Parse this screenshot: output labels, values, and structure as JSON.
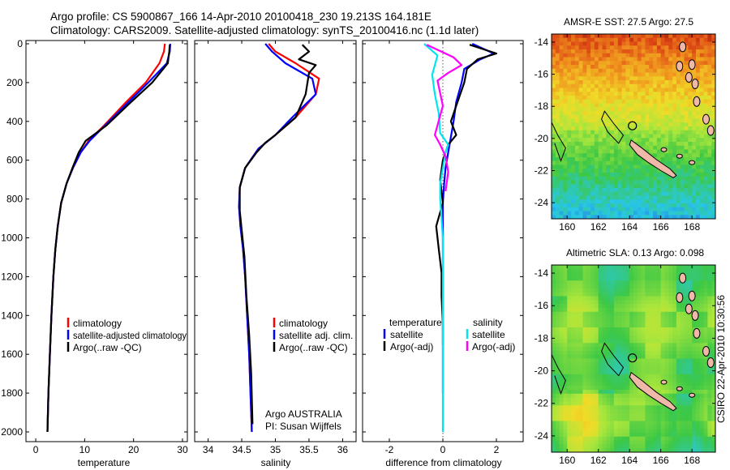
{
  "header": {
    "line1": "Argo profile: CS 5900867_166 14-Apr-2010 20100418_230 19.213S 164.181E",
    "line2": "Climatology: CARS2009. Satellite-adjusted climatology: synTS_20100416.nc (1.1d later)"
  },
  "credit": "Argo AUSTRALIA",
  "pi": "PI: Susan Wijffels",
  "timestamp": "CSIRO 22-Apr-2010 10:30:56",
  "colors": {
    "climatology": "#ff0000",
    "satellite": "#0000ff",
    "argo": "#000000",
    "sat_diff": "#00e5ee",
    "argo_diff": "#ff00ff"
  },
  "chart_data": [
    {
      "type": "line",
      "id": "temperature",
      "xlabel": "temperature",
      "xlim": [
        -2,
        31
      ],
      "xticks": [
        0,
        10,
        20,
        30
      ],
      "ylim": [
        2000,
        0
      ],
      "yticks": [
        0,
        200,
        400,
        600,
        800,
        1000,
        1200,
        1400,
        1600,
        1800,
        2000
      ],
      "legend": [
        "climatology",
        "satellite-adjusted climatology",
        "Argo(..raw -QC)"
      ],
      "series": [
        {
          "name": "climatology",
          "color": "#ff0000",
          "x": [
            26.4,
            26.2,
            25.3,
            22.5,
            18.5,
            14.0,
            10.8,
            9.2,
            7.6,
            6.3,
            5.2,
            4.5,
            4.0,
            3.6,
            3.2,
            2.9,
            2.6,
            2.4
          ],
          "y": [
            0,
            40,
            100,
            200,
            300,
            420,
            500,
            560,
            640,
            720,
            820,
            940,
            1060,
            1200,
            1400,
            1600,
            1800,
            2000
          ]
        },
        {
          "name": "satellite-adjusted climatology",
          "color": "#0000ff",
          "x": [
            27.5,
            27.4,
            26.8,
            23.0,
            19.0,
            14.2,
            11.0,
            9.2,
            7.6,
            6.3,
            5.2,
            4.5,
            4.0,
            3.6,
            3.2,
            2.9,
            2.6,
            2.4
          ],
          "y": [
            0,
            40,
            100,
            200,
            300,
            420,
            500,
            560,
            640,
            720,
            820,
            940,
            1060,
            1200,
            1400,
            1600,
            1800,
            2000
          ]
        },
        {
          "name": "Argo(..raw -QC)",
          "color": "#000000",
          "x": [
            27.4,
            27.3,
            27.0,
            23.8,
            19.5,
            14.5,
            10.2,
            8.8,
            7.5,
            6.3,
            5.2,
            4.5,
            4.0,
            3.6,
            3.2,
            2.9,
            2.6,
            2.4
          ],
          "y": [
            5,
            40,
            100,
            200,
            300,
            420,
            500,
            560,
            640,
            720,
            820,
            940,
            1060,
            1200,
            1400,
            1600,
            1800,
            2000
          ]
        }
      ]
    },
    {
      "type": "line",
      "id": "salinity",
      "xlabel": "salinity",
      "xlim": [
        33.8,
        36.2
      ],
      "xticks": [
        34,
        34.5,
        35,
        35.5,
        36
      ],
      "ylim": [
        2000,
        0
      ],
      "legend": [
        "climatology",
        "satellite adj. clim.",
        "Argo(..raw -QC)"
      ],
      "series": [
        {
          "name": "climatology",
          "color": "#ff0000",
          "x": [
            34.9,
            35.0,
            35.3,
            35.65,
            35.6,
            35.3,
            35.0,
            34.75,
            34.55,
            34.47,
            34.46,
            34.48,
            34.52,
            34.55,
            34.58,
            34.61,
            34.63,
            34.65
          ],
          "y": [
            0,
            40,
            100,
            180,
            260,
            380,
            470,
            540,
            640,
            740,
            840,
            940,
            1060,
            1200,
            1400,
            1600,
            1800,
            2000
          ]
        },
        {
          "name": "satellite adj. clim.",
          "color": "#0000ff",
          "x": [
            34.85,
            34.95,
            35.15,
            35.55,
            35.6,
            35.25,
            35.0,
            34.75,
            34.55,
            34.47,
            34.46,
            34.48,
            34.52,
            34.55,
            34.58,
            34.61,
            34.63,
            34.65
          ],
          "y": [
            0,
            40,
            100,
            180,
            260,
            380,
            470,
            540,
            640,
            740,
            840,
            940,
            1060,
            1200,
            1400,
            1600,
            1800,
            2000
          ]
        },
        {
          "name": "Argo(..raw -QC)",
          "color": "#000000",
          "x": [
            35.4,
            35.5,
            35.35,
            35.6,
            35.5,
            35.45,
            35.3,
            35.0,
            34.85,
            34.72,
            34.55,
            34.47,
            34.47,
            34.5,
            34.54,
            34.57,
            34.61,
            34.64,
            34.66
          ],
          "y": [
            5,
            40,
            80,
            110,
            150,
            260,
            380,
            470,
            510,
            560,
            640,
            740,
            860,
            960,
            1100,
            1300,
            1500,
            1700,
            1960
          ]
        }
      ]
    },
    {
      "type": "line",
      "id": "difference",
      "xlabel": "difference from climatology",
      "xlim": [
        -3,
        3
      ],
      "xticks": [
        -2,
        0,
        2
      ],
      "ylim": [
        2000,
        0
      ],
      "zero_line": true,
      "legend_temperature": {
        "heading": "temperature",
        "entries": [
          "satellite",
          "Argo(-adj)"
        ]
      },
      "legend_salinity": {
        "heading": "salinity",
        "entries": [
          "satellite",
          "Argo(-adj)"
        ]
      },
      "series": [
        {
          "name": "temperature satellite",
          "color": "#0000ff",
          "x": [
            1.1,
            1.9,
            1.4,
            0.8,
            0.7,
            0.5,
            0.4,
            0.3,
            0.2,
            0.1,
            0.05,
            0.0,
            0.0,
            0.0,
            0.0,
            0.0,
            0.0
          ],
          "y": [
            0,
            50,
            80,
            130,
            200,
            300,
            400,
            480,
            560,
            640,
            720,
            820,
            1000,
            1200,
            1400,
            1600,
            1800
          ]
        },
        {
          "name": "temperature Argo(-adj)",
          "color": "#000000",
          "x": [
            1.0,
            2.0,
            1.3,
            0.9,
            0.8,
            0.55,
            0.3,
            0.5,
            0.2,
            0.0,
            -0.1,
            0.0,
            -0.25,
            -0.15,
            -0.05,
            -0.05,
            0.0,
            0.0
          ],
          "y": [
            5,
            50,
            80,
            130,
            200,
            300,
            400,
            470,
            520,
            600,
            700,
            820,
            940,
            1060,
            1180,
            1300,
            1450,
            1550
          ]
        },
        {
          "name": "salinity satellite",
          "color": "#00e5ee",
          "x": [
            -0.7,
            -0.2,
            -0.4,
            -0.3,
            -0.15,
            -0.1,
            0.2,
            0.1,
            0.0,
            -0.1,
            -0.1,
            -0.05,
            0.0,
            0.0,
            0.0,
            0.0,
            0.0
          ],
          "y": [
            0,
            60,
            160,
            260,
            360,
            460,
            520,
            560,
            640,
            720,
            800,
            900,
            1000,
            1200,
            1500,
            1800,
            2000
          ]
        },
        {
          "name": "salinity Argo(-adj)",
          "color": "#ff00ff",
          "x": [
            -0.6,
            0.4,
            0.7,
            0.2,
            -0.2,
            0.0,
            -0.3,
            -0.1,
            0.1,
            0.2,
            0.1
          ],
          "y": [
            5,
            70,
            110,
            150,
            190,
            320,
            470,
            520,
            580,
            660,
            760
          ]
        }
      ]
    },
    {
      "type": "heatmap",
      "id": "sst-map",
      "title": "AMSR-E SST: 27.5 Argo: 27.5",
      "xlim": [
        159,
        169.5
      ],
      "ylim": [
        -25,
        -13.5
      ],
      "xticks": [
        160,
        162,
        164,
        166,
        168
      ],
      "yticks": [
        -14,
        -16,
        -18,
        -20,
        -22,
        -24
      ],
      "profile_location": [
        164.18,
        -19.21
      ]
    },
    {
      "type": "heatmap",
      "id": "sla-map",
      "title": "Altimetric SLA: 0.13 Argo: 0.098",
      "xlim": [
        159,
        169.5
      ],
      "ylim": [
        -25,
        -13.5
      ],
      "xticks": [
        160,
        162,
        164,
        166,
        168
      ],
      "yticks": [
        -14,
        -16,
        -18,
        -20,
        -22,
        -24
      ],
      "profile_location": [
        164.18,
        -19.21
      ]
    }
  ]
}
